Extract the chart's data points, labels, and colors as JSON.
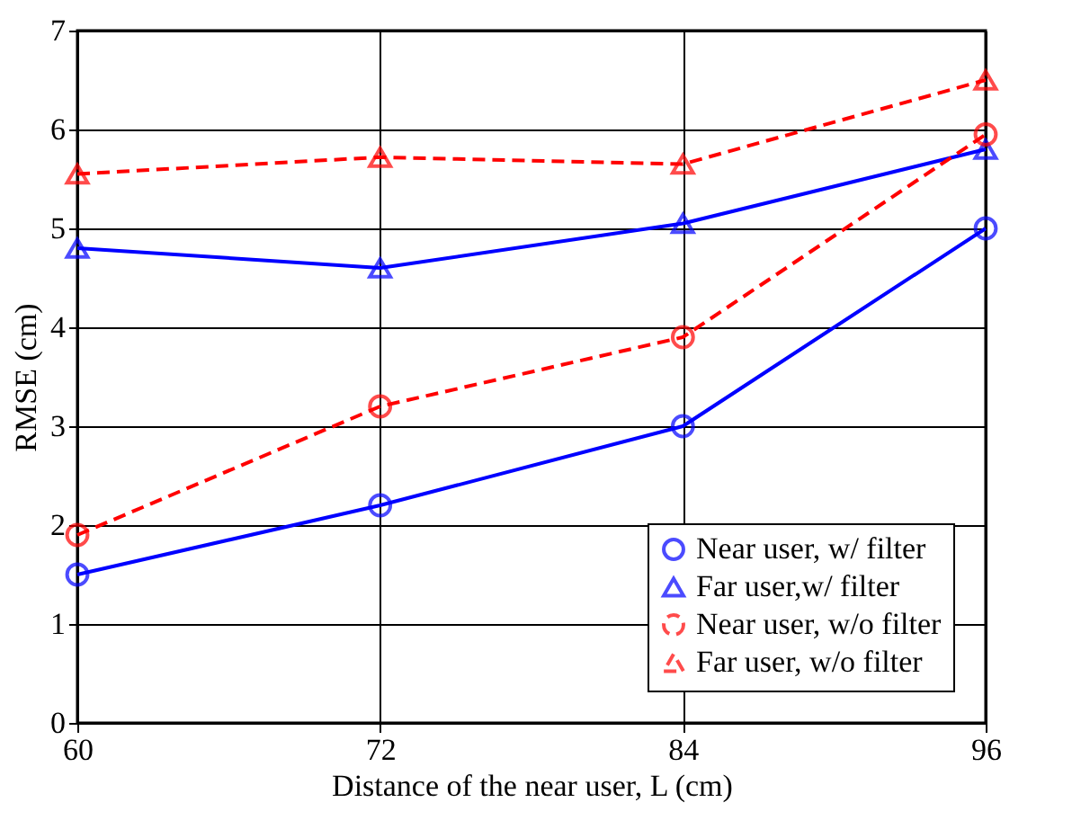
{
  "chart_data": {
    "type": "line",
    "xlabel": "Distance of the near user, L (cm)",
    "ylabel": "RMSE (cm)",
    "x": [
      60,
      72,
      84,
      96
    ],
    "xlim": [
      60,
      96
    ],
    "xticks": [
      60,
      72,
      84,
      96
    ],
    "ylim": [
      0,
      7
    ],
    "yticks": [
      0,
      1,
      2,
      3,
      4,
      5,
      6,
      7
    ],
    "grid": true,
    "legend": "bottom right",
    "series": [
      {
        "name": "Near user, w/ filter",
        "color": "#0000ff",
        "marker": "circle",
        "line_style": "solid",
        "values": [
          1.5,
          2.2,
          3.0,
          5.0
        ]
      },
      {
        "name": "Far user,w/ filter",
        "color": "#0000ff",
        "marker": "triangle",
        "line_style": "solid",
        "values": [
          4.8,
          4.6,
          5.05,
          5.8
        ]
      },
      {
        "name": "Near user, w/o filter",
        "color": "#ff0000",
        "marker": "circle",
        "line_style": "dashed",
        "values": [
          1.9,
          3.2,
          3.9,
          5.95
        ]
      },
      {
        "name": "Far user, w/o filter",
        "color": "#ff0000",
        "marker": "triangle",
        "line_style": "dashed",
        "values": [
          5.55,
          5.72,
          5.65,
          6.5
        ]
      }
    ]
  }
}
